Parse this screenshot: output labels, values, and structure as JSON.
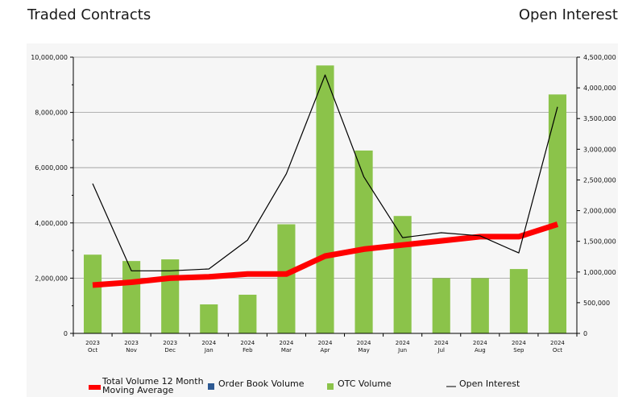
{
  "header": {
    "left_title": "Traded Contracts",
    "right_title": "Open Interest"
  },
  "chart_data": {
    "type": "bar",
    "categories": [
      [
        "2023",
        "Oct"
      ],
      [
        "2023",
        "Nov"
      ],
      [
        "2023",
        "Dec"
      ],
      [
        "2024",
        "Jan"
      ],
      [
        "2024",
        "Feb"
      ],
      [
        "2024",
        "Mar"
      ],
      [
        "2024",
        "Apr"
      ],
      [
        "2024",
        "May"
      ],
      [
        "2024",
        "Jun"
      ],
      [
        "2024",
        "Jul"
      ],
      [
        "2024",
        "Aug"
      ],
      [
        "2024",
        "Sep"
      ],
      [
        "2024",
        "Oct"
      ]
    ],
    "y_left": {
      "ylim": [
        0,
        10000000
      ],
      "ticks": [
        0,
        2000000,
        4000000,
        6000000,
        8000000,
        10000000
      ],
      "tick_labels": [
        "0",
        "2,000,000",
        "4,000,000",
        "6,000,000",
        "8,000,000",
        "10,000,000"
      ]
    },
    "y_right": {
      "ylim": [
        0,
        4500000
      ],
      "ticks": [
        0,
        500000,
        1000000,
        1500000,
        2000000,
        2500000,
        3000000,
        3500000,
        4000000,
        4500000
      ],
      "tick_labels": [
        "0",
        "500,000",
        "1,000,000",
        "1,500,000",
        "2,000,000",
        "2,500,000",
        "3,000,000",
        "3,500,000",
        "4,000,000",
        "4,500,000"
      ]
    },
    "series": [
      {
        "name": "Total Volume 12 Month Moving Average",
        "legend_lines": [
          "Total Volume 12 Month",
          "Moving Average"
        ],
        "kind": "line",
        "axis": "left",
        "color": "#ff0000",
        "values": [
          1750000,
          1850000,
          2000000,
          2050000,
          2150000,
          2150000,
          2800000,
          3050000,
          3200000,
          3350000,
          3500000,
          3500000,
          3950000
        ]
      },
      {
        "name": "Order Book Volume",
        "legend_lines": [
          "Order Book Volume"
        ],
        "kind": "bar",
        "axis": "left",
        "color": "#2e5a93",
        "values": [
          0,
          0,
          0,
          0,
          0,
          0,
          0,
          0,
          0,
          0,
          0,
          0,
          0
        ]
      },
      {
        "name": "OTC Volume",
        "legend_lines": [
          "OTC Volume"
        ],
        "kind": "bar",
        "axis": "left",
        "color": "#8bc34a",
        "values": [
          2850000,
          2620000,
          2680000,
          1050000,
          1400000,
          3950000,
          9700000,
          6620000,
          4250000,
          2000000,
          2000000,
          2330000,
          8650000
        ]
      },
      {
        "name": "Open Interest",
        "legend_lines": [
          "Open Interest"
        ],
        "kind": "line",
        "axis": "right",
        "color": "#000000",
        "values": [
          2440000,
          1020000,
          1020000,
          1050000,
          1520000,
          2600000,
          4210000,
          2550000,
          1560000,
          1640000,
          1590000,
          1310000,
          3690000
        ]
      }
    ],
    "grid": true,
    "legend_position": "bottom"
  }
}
